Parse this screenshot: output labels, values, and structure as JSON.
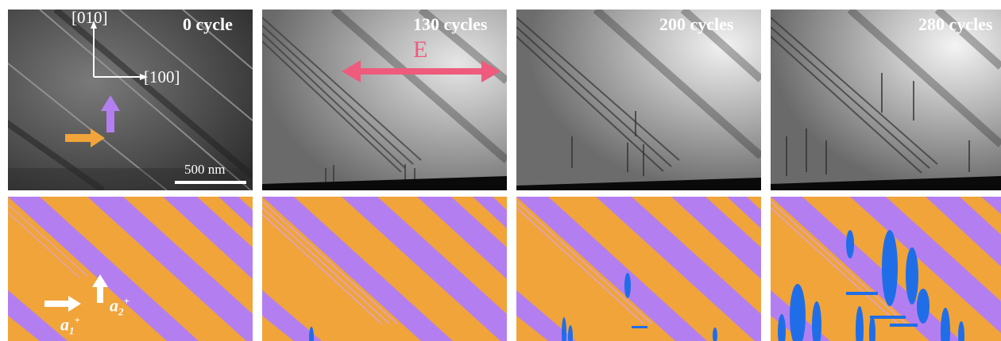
{
  "panels": {
    "p0": {
      "label": "0 cycle"
    },
    "p1": {
      "label": "130 cycles"
    },
    "p2": {
      "label": "200 cycles"
    },
    "p3": {
      "label": "280 cycles"
    }
  },
  "axes": {
    "y_label": "[010]",
    "x_label": "[100]"
  },
  "efield_label": "E",
  "scale_bar": "500 nm",
  "variants": {
    "a1_base": "a",
    "a1_sub": "1",
    "a1_sup": "+",
    "a2_base": "a",
    "a2_sub": "2",
    "a2_sup": "+"
  },
  "colors": {
    "matrix": "#f0a43a",
    "domain": "#b37ff0",
    "needle": "#1f6ee8",
    "efield": "#ee5b7d",
    "orange_arrow": "#f0a43a",
    "purple_arrow": "#b37ff0"
  }
}
